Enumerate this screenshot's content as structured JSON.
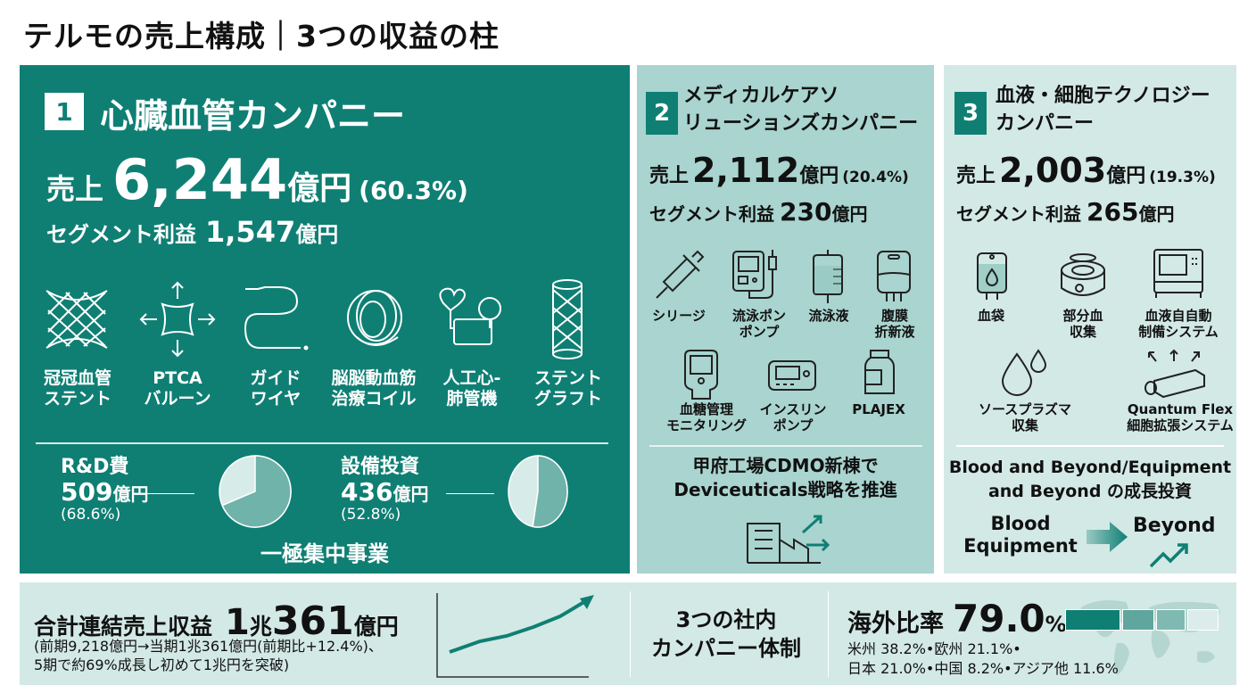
{
  "title": "テルモの売上構成｜3つの収益の柱",
  "colors": {
    "dark_teal": "#0f7f74",
    "mid_teal": "#a9d4cf",
    "light_teal": "#d3e9e5"
  },
  "panel1": {
    "number": "1",
    "name": "心臓血管カンパニー",
    "sales_prefix": "売上",
    "sales_value": "6,244",
    "sales_unit": "億円",
    "sales_share": "(60.3%)",
    "profit_label": "セグメント利益",
    "profit_value": "1,547",
    "profit_unit": "億円",
    "products": [
      {
        "icon": "stent-mesh-icon",
        "line1": "冠冠血管",
        "line2": "ステント"
      },
      {
        "icon": "balloon-icon",
        "line1": "PTCA",
        "line2": "バルーン"
      },
      {
        "icon": "guidewire-icon",
        "line1": "ガイド",
        "line2": "ワイヤ"
      },
      {
        "icon": "coil-icon",
        "line1": "脳脳動血筋",
        "line2": "治療コイル"
      },
      {
        "icon": "heart-lung-machine-icon",
        "line1": "人工心-",
        "line2": "肺管機"
      },
      {
        "icon": "stent-graft-icon",
        "line1": "ステント",
        "line2": "グラフト"
      }
    ],
    "rd": {
      "label": "R&D費",
      "value": "509",
      "unit": "億円",
      "share": "(68.6%)",
      "share_value": 68.6
    },
    "capex": {
      "label": "設備投資",
      "value": "436",
      "unit": "億円",
      "share": "(52.8%)",
      "share_value": 52.8
    },
    "footer": "一極集中事業"
  },
  "panel2": {
    "number": "2",
    "name_line1": "メディカルケアソ",
    "name_line2": "リューションズカンパニー",
    "sales_prefix": "売上",
    "sales_value": "2,112",
    "sales_unit": "億円",
    "sales_share": "(20.4%)",
    "profit_label": "セグメント利益",
    "profit_value": "230",
    "profit_unit": "億円",
    "products": [
      {
        "icon": "syringe-icon",
        "line1": "シリージ",
        "line2": ""
      },
      {
        "icon": "infusion-pump-icon",
        "line1": "流泳ポン",
        "line2": "ポンプ"
      },
      {
        "icon": "iv-bag-icon",
        "line1": "流泳液",
        "line2": ""
      },
      {
        "icon": "dialysis-bag-icon",
        "line1": "腹膜",
        "line2": "折新液"
      },
      {
        "icon": "glucose-meter-icon",
        "line1": "血糖管理",
        "line2": "モニタリング"
      },
      {
        "icon": "insulin-pump-icon",
        "line1": "インスリン",
        "line2": "ポンプ"
      },
      {
        "icon": "medicine-bottle-icon",
        "line1": "PLAJEX",
        "line2": ""
      }
    ],
    "footer_line1": "甲府工場CDMO新棟で",
    "footer_line2": "Deviceuticals戦略を推進"
  },
  "panel3": {
    "number": "3",
    "name_line1": "血液・細胞テクノロジー",
    "name_line2": "カンパニー",
    "sales_prefix": "売上",
    "sales_value": "2,003",
    "sales_unit": "億円",
    "sales_share": "(19.3%)",
    "profit_label": "セグメント利益",
    "profit_value": "265",
    "profit_unit": "億円",
    "products": [
      {
        "icon": "blood-bag-icon",
        "line1": "血袋",
        "line2": ""
      },
      {
        "icon": "centrifuge-icon",
        "line1": "部分血",
        "line2": "収集"
      },
      {
        "icon": "automated-system-icon",
        "line1": "血液自自動",
        "line2": "制備システム"
      },
      {
        "icon": "droplets-icon",
        "line1": "ソースプラズマ",
        "line2": "収集"
      },
      {
        "icon": "cell-flask-icon",
        "line1": "Quantum Flex",
        "line2": "細胞拡張システム"
      }
    ],
    "footer_line1": "Blood and Beyond/Equipment",
    "footer_line2": "and Beyond の成長投資",
    "from_line1": "Blood",
    "from_line2": "Equipment",
    "to": "Beyond"
  },
  "bottom": {
    "total_label": "合計連結売上収益",
    "total_value_1": "1",
    "total_value_cho": "兆",
    "total_value_2": "361",
    "total_unit": "億円",
    "note_line1": "(前期9,218億円→当期1兆361億円(前期比+12.4%)、",
    "note_line2": "5期で約69%成長し初めて1兆円を突破)",
    "structure_line1": "3つの社内",
    "structure_line2": "カンパニー体制",
    "overseas_label": "海外比率",
    "overseas_value": "79.0",
    "overseas_unit": "%",
    "regions_line1": "米州 38.2%•欧州 21.1%•",
    "regions_line2": "日本 21.0%•中国 8.2%•アジア他 11.6%",
    "region_bar": [
      38.2,
      21.1,
      19.8,
      21.0
    ]
  }
}
